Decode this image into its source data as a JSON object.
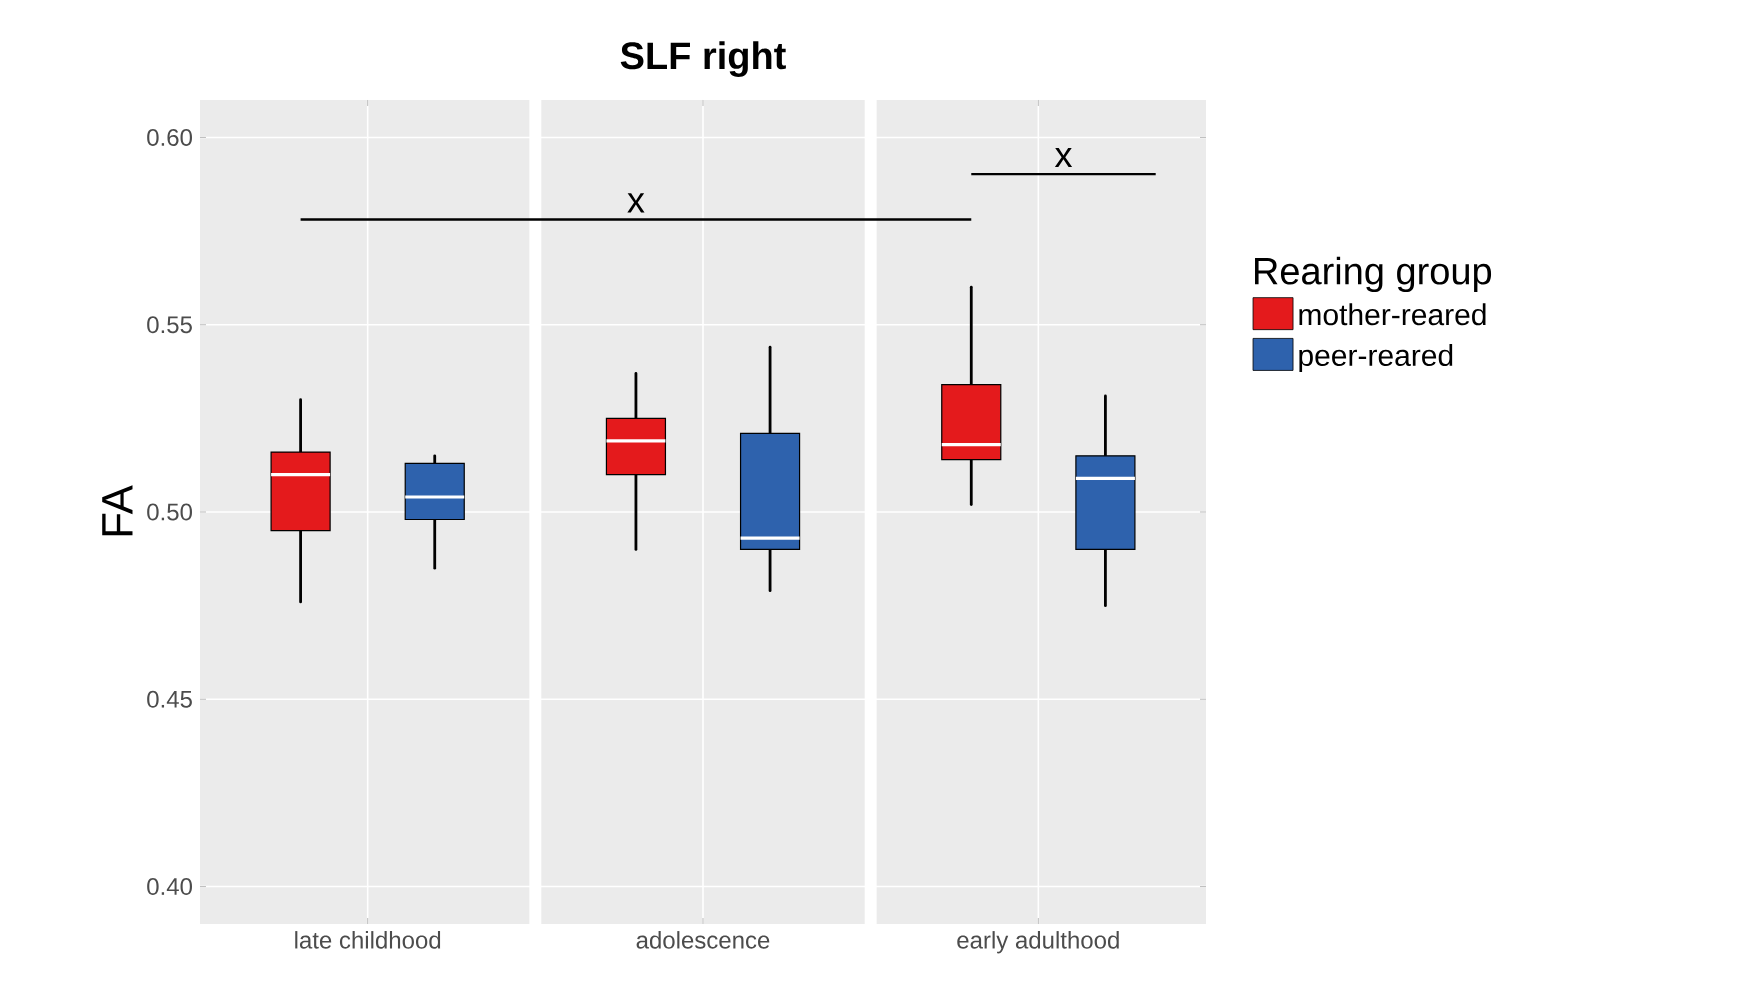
{
  "chart_data": {
    "type": "box",
    "title": "SLF right",
    "ylabel": "FA",
    "legend_title": "Rearing group",
    "legend": "right",
    "grid": true,
    "categories": [
      "late childhood",
      "adolescence",
      "early adulthood"
    ],
    "ylim": [
      0.39,
      0.61
    ],
    "yticks": [
      {
        "value": 0.4,
        "label": "0.40"
      },
      {
        "value": 0.45,
        "label": "0.45"
      },
      {
        "value": 0.5,
        "label": "0.50"
      },
      {
        "value": 0.55,
        "label": "0.55"
      },
      {
        "value": 0.6,
        "label": "0.60"
      }
    ],
    "series": [
      {
        "name": "mother-reared",
        "color": "#e41a1c",
        "boxes": [
          {
            "low": 0.476,
            "q1": 0.495,
            "median": 0.51,
            "q3": 0.516,
            "high": 0.53
          },
          {
            "low": 0.49,
            "q1": 0.51,
            "median": 0.519,
            "q3": 0.525,
            "high": 0.537
          },
          {
            "low": 0.502,
            "q1": 0.514,
            "median": 0.518,
            "q3": 0.534,
            "high": 0.56
          }
        ]
      },
      {
        "name": "peer-reared",
        "color": "#2e62ad",
        "boxes": [
          {
            "low": 0.485,
            "q1": 0.498,
            "median": 0.504,
            "q3": 0.513,
            "high": 0.515
          },
          {
            "low": 0.479,
            "q1": 0.49,
            "median": 0.493,
            "q3": 0.521,
            "high": 0.544
          },
          {
            "low": 0.475,
            "q1": 0.49,
            "median": 0.509,
            "q3": 0.515,
            "high": 0.531
          }
        ]
      }
    ],
    "annotations": [
      "x",
      "x"
    ]
  }
}
